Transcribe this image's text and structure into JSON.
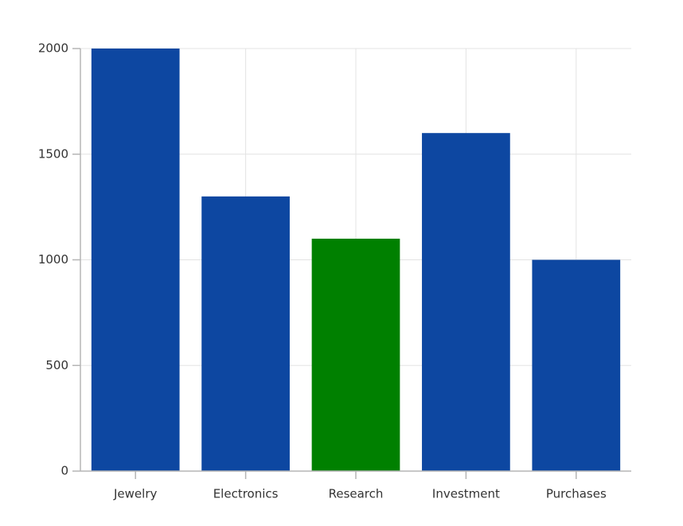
{
  "chart_data": {
    "type": "bar",
    "categories": [
      "Jewelry",
      "Electronics",
      "Research",
      "Investment",
      "Purchases"
    ],
    "values": [
      2000,
      1300,
      1100,
      1600,
      1000
    ],
    "colors": [
      "#0d47a1",
      "#0d47a1",
      "#008000",
      "#0d47a1",
      "#0d47a1"
    ],
    "ylim": [
      0,
      2000
    ],
    "yticks": [
      0,
      500,
      1000,
      1500,
      2000
    ],
    "grid": true
  }
}
